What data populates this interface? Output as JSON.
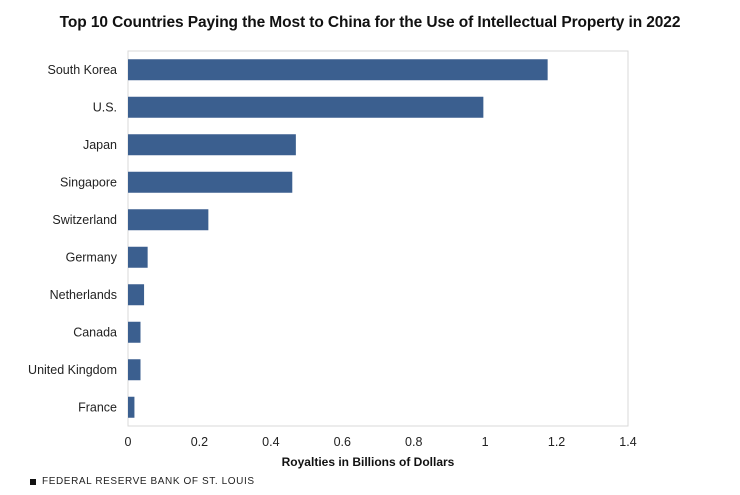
{
  "chart_data": {
    "type": "bar",
    "orientation": "horizontal",
    "title": "Top 10 Countries Paying the Most to China for the Use of Intellectual Property in 2022",
    "xlabel": "Royalties in Billions of Dollars",
    "ylabel": "",
    "categories": [
      "South Korea",
      "U.S.",
      "Japan",
      "Singapore",
      "Switzerland",
      "Germany",
      "Netherlands",
      "Canada",
      "United Kingdom",
      "France"
    ],
    "values": [
      1.175,
      0.995,
      0.47,
      0.46,
      0.225,
      0.055,
      0.045,
      0.035,
      0.035,
      0.018
    ],
    "xlim": [
      0,
      1.4
    ],
    "xticks": [
      0,
      0.2,
      0.4,
      0.6,
      0.8,
      1,
      1.2,
      1.4
    ],
    "xtick_labels": [
      "0",
      "0.2",
      "0.4",
      "0.6",
      "0.8",
      "1",
      "1.2",
      "1.4"
    ],
    "grid": false,
    "legend": "none",
    "bar_color": "#3b5f8f"
  },
  "footer": {
    "source": "FEDERAL RESERVE BANK OF ST. LOUIS"
  }
}
